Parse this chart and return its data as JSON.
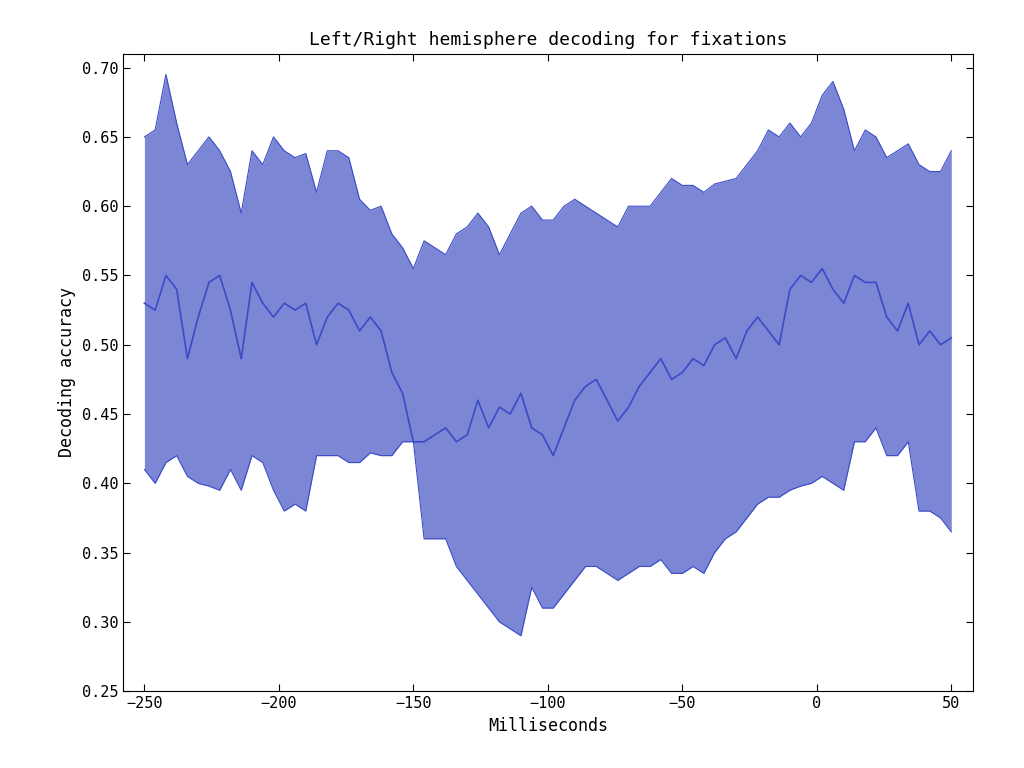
{
  "title": "Left/Right hemisphere decoding for fixations",
  "xlabel": "Milliseconds",
  "ylabel": "Decoding accuracy",
  "xlim": [
    -258,
    58
  ],
  "ylim": [
    0.25,
    0.71
  ],
  "xticks": [
    -250,
    -200,
    -150,
    -100,
    -50,
    0,
    50
  ],
  "yticks": [
    0.25,
    0.3,
    0.35,
    0.4,
    0.45,
    0.5,
    0.55,
    0.6,
    0.65,
    0.7
  ],
  "fill_color": "#7B86D4",
  "line_color": "#3B4BC8",
  "background_color": "#FFFFFF",
  "x": [
    -250,
    -246,
    -242,
    -238,
    -234,
    -230,
    -226,
    -222,
    -218,
    -214,
    -210,
    -206,
    -202,
    -198,
    -194,
    -190,
    -186,
    -182,
    -178,
    -174,
    -170,
    -166,
    -162,
    -158,
    -154,
    -150,
    -146,
    -142,
    -138,
    -134,
    -130,
    -126,
    -122,
    -118,
    -114,
    -110,
    -106,
    -102,
    -98,
    -94,
    -90,
    -86,
    -82,
    -78,
    -74,
    -70,
    -66,
    -62,
    -58,
    -54,
    -50,
    -46,
    -42,
    -38,
    -34,
    -30,
    -26,
    -22,
    -18,
    -14,
    -10,
    -6,
    -2,
    2,
    6,
    10,
    14,
    18,
    22,
    26,
    30,
    34,
    38,
    42,
    46,
    50
  ],
  "mean": [
    0.53,
    0.525,
    0.55,
    0.54,
    0.49,
    0.52,
    0.545,
    0.55,
    0.525,
    0.49,
    0.545,
    0.53,
    0.52,
    0.53,
    0.525,
    0.53,
    0.5,
    0.52,
    0.53,
    0.525,
    0.51,
    0.52,
    0.51,
    0.48,
    0.465,
    0.43,
    0.43,
    0.435,
    0.44,
    0.43,
    0.435,
    0.46,
    0.44,
    0.455,
    0.45,
    0.465,
    0.44,
    0.435,
    0.42,
    0.44,
    0.46,
    0.47,
    0.475,
    0.46,
    0.445,
    0.455,
    0.47,
    0.48,
    0.49,
    0.475,
    0.48,
    0.49,
    0.485,
    0.5,
    0.505,
    0.49,
    0.51,
    0.52,
    0.51,
    0.5,
    0.54,
    0.55,
    0.545,
    0.555,
    0.54,
    0.53,
    0.55,
    0.545,
    0.545,
    0.52,
    0.51,
    0.53,
    0.5,
    0.51,
    0.5,
    0.505
  ],
  "upper": [
    0.65,
    0.655,
    0.695,
    0.66,
    0.63,
    0.64,
    0.65,
    0.64,
    0.625,
    0.595,
    0.64,
    0.63,
    0.65,
    0.64,
    0.635,
    0.638,
    0.61,
    0.64,
    0.64,
    0.635,
    0.605,
    0.597,
    0.6,
    0.58,
    0.57,
    0.555,
    0.575,
    0.57,
    0.565,
    0.58,
    0.585,
    0.595,
    0.585,
    0.565,
    0.58,
    0.595,
    0.6,
    0.59,
    0.59,
    0.6,
    0.605,
    0.6,
    0.595,
    0.59,
    0.585,
    0.6,
    0.6,
    0.6,
    0.61,
    0.62,
    0.615,
    0.615,
    0.61,
    0.616,
    0.618,
    0.62,
    0.63,
    0.64,
    0.655,
    0.65,
    0.66,
    0.65,
    0.66,
    0.68,
    0.69,
    0.67,
    0.64,
    0.655,
    0.65,
    0.635,
    0.64,
    0.645,
    0.63,
    0.625,
    0.625,
    0.64
  ],
  "lower": [
    0.41,
    0.4,
    0.415,
    0.42,
    0.405,
    0.4,
    0.398,
    0.395,
    0.41,
    0.395,
    0.42,
    0.415,
    0.395,
    0.38,
    0.385,
    0.38,
    0.42,
    0.42,
    0.42,
    0.415,
    0.415,
    0.422,
    0.42,
    0.42,
    0.43,
    0.43,
    0.36,
    0.36,
    0.36,
    0.34,
    0.33,
    0.32,
    0.31,
    0.3,
    0.295,
    0.29,
    0.325,
    0.31,
    0.31,
    0.32,
    0.33,
    0.34,
    0.34,
    0.335,
    0.33,
    0.335,
    0.34,
    0.34,
    0.345,
    0.335,
    0.335,
    0.34,
    0.335,
    0.35,
    0.36,
    0.365,
    0.375,
    0.385,
    0.39,
    0.39,
    0.395,
    0.398,
    0.4,
    0.405,
    0.4,
    0.395,
    0.43,
    0.43,
    0.44,
    0.42,
    0.42,
    0.43,
    0.38,
    0.38,
    0.375,
    0.365
  ]
}
